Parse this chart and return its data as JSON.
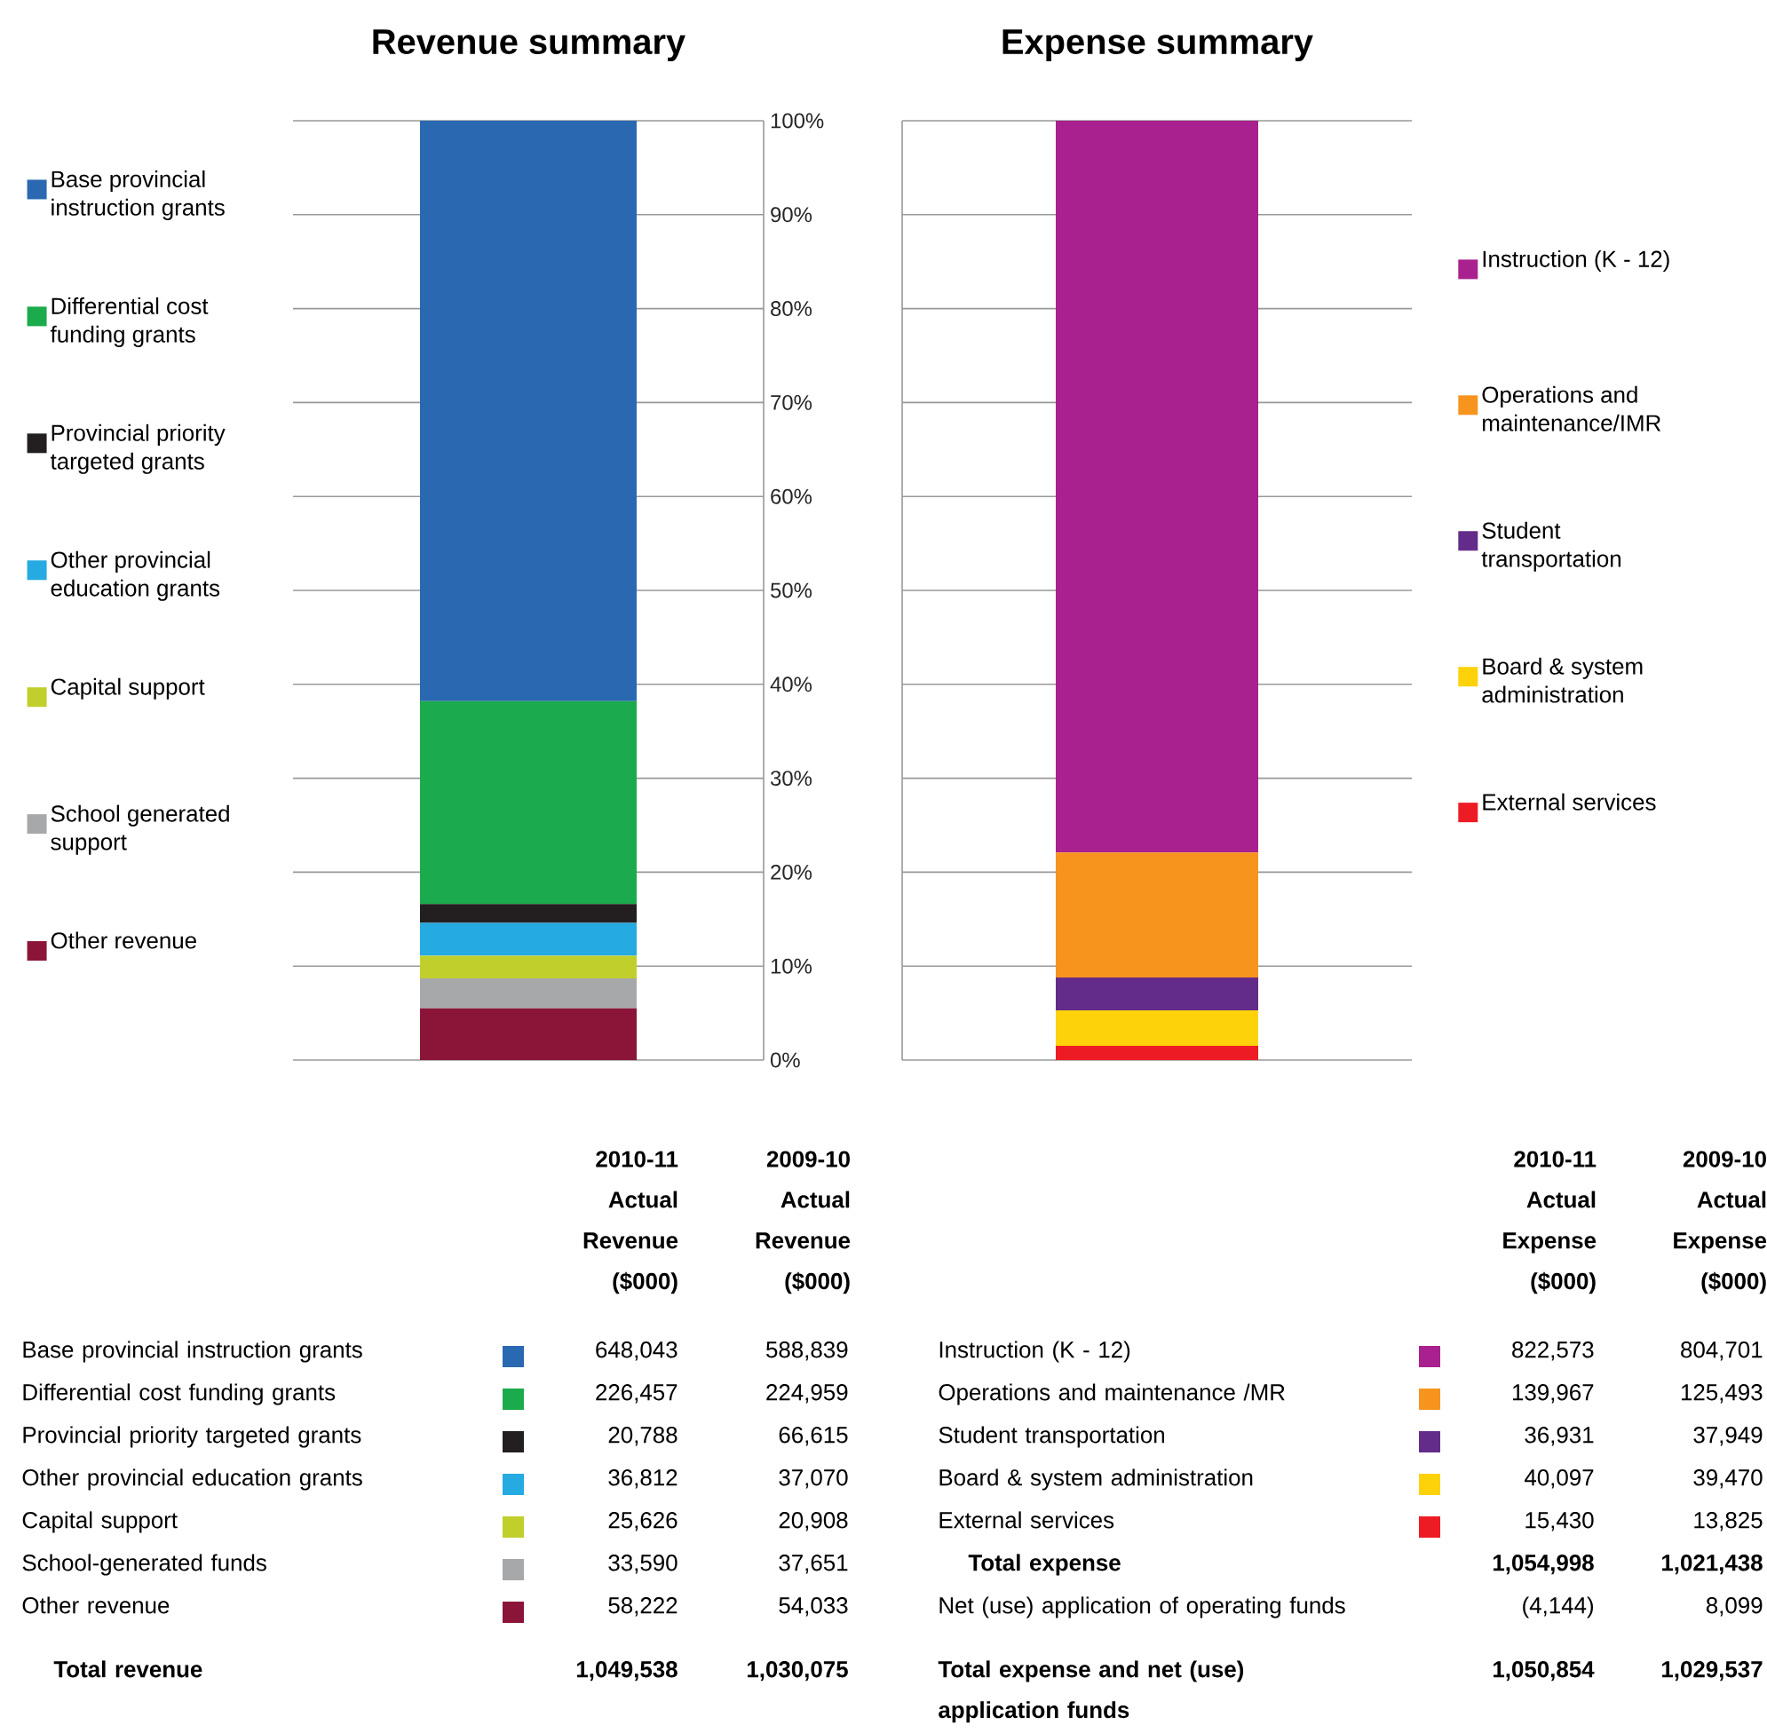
{
  "chart_data": [
    {
      "type": "bar",
      "title": "Revenue summary",
      "categories": [
        null
      ],
      "stacked": true,
      "grid": "y",
      "legend": "left",
      "tick_labels": "y",
      "ylim": [
        0,
        100
      ],
      "yticks": [
        {
          "value": 0,
          "label": "0%"
        },
        {
          "value": 10,
          "label": "10%"
        },
        {
          "value": 20,
          "label": "20%"
        },
        {
          "value": 30,
          "label": "30%"
        },
        {
          "value": 40,
          "label": "40%"
        },
        {
          "value": 50,
          "label": "50%"
        },
        {
          "value": 60,
          "label": "60%"
        },
        {
          "value": 70,
          "label": "70%"
        },
        {
          "value": 80,
          "label": "80%"
        },
        {
          "value": 90,
          "label": "90%"
        },
        {
          "value": 100,
          "label": "100%"
        }
      ],
      "series": [
        {
          "name": "Other revenue",
          "color": "#8b1538",
          "values": [
            5.5
          ]
        },
        {
          "name": "School generated support",
          "color": "#a7a8aa",
          "values": [
            3.2
          ]
        },
        {
          "name": "Capital support",
          "color": "#c1cf2d",
          "values": [
            2.4
          ]
        },
        {
          "name": "Other provincial education grants",
          "color": "#25aae1",
          "values": [
            3.5
          ]
        },
        {
          "name": "Provincial priority targeted grants",
          "color": "#231f20",
          "values": [
            2.0
          ]
        },
        {
          "name": "Differential cost funding grants",
          "color": "#1bab4c",
          "values": [
            21.6
          ]
        },
        {
          "name": "Base provincial instruction grants",
          "color": "#2a68b1",
          "values": [
            61.8
          ]
        }
      ],
      "annotations": [
        "2010-11 Actual Revenue ($000)",
        "2009-10 Actual Revenue ($000)",
        "Base provincial instruction grants",
        "648,043",
        "588,839",
        "Differential cost funding grants",
        "226,457",
        "224,959",
        "Provincial priority targeted grants",
        "20,788",
        "66,615",
        "Other provincial education grants",
        "36,812",
        "37,070",
        "Capital support",
        "25,626",
        "20,908",
        "School-generated funds",
        "33,590",
        "37,651",
        "Other revenue",
        "58,222",
        "54,033",
        "Total revenue",
        "1,049,538",
        "1,030,075"
      ]
    },
    {
      "type": "bar",
      "title": "Expense summary",
      "categories": [
        null
      ],
      "stacked": true,
      "grid": "y",
      "legend": "right",
      "tick_labels": false,
      "ylim": [
        0,
        100
      ],
      "yticks": [
        {
          "value": 0,
          "label": null
        },
        {
          "value": 10,
          "label": null
        },
        {
          "value": 20,
          "label": null
        },
        {
          "value": 30,
          "label": null
        },
        {
          "value": 40,
          "label": null
        },
        {
          "value": 50,
          "label": null
        },
        {
          "value": 60,
          "label": null
        },
        {
          "value": 70,
          "label": null
        },
        {
          "value": 80,
          "label": null
        },
        {
          "value": 90,
          "label": null
        },
        {
          "value": 100,
          "label": null
        }
      ],
      "series": [
        {
          "name": "External services",
          "color": "#ed1c24",
          "values": [
            1.5
          ]
        },
        {
          "name": "Board & system administration",
          "color": "#fdd20a",
          "values": [
            3.8
          ]
        },
        {
          "name": "Student transportation",
          "color": "#642c8a",
          "values": [
            3.5
          ]
        },
        {
          "name": "Operations and maintenance/IMR",
          "color": "#f7941e",
          "values": [
            13.3
          ]
        },
        {
          "name": "Instruction (K - 12)",
          "color": "#a9218e",
          "values": [
            77.9
          ]
        }
      ],
      "annotations": [
        "2010-11 Actual Expense ($000)",
        "2009-10 Actual Expense ($000)",
        "Instruction (K - 12)",
        "822,573",
        "804,701",
        "Operations and maintenance /MR",
        "139,967",
        "125,493",
        "Student transportation",
        "36,931",
        "37,949",
        "Board & system administration",
        "40,097",
        "39,470",
        "External services",
        "15,430",
        "13,825",
        "Total expense",
        "1,054,998",
        "1,021,438",
        "Net (use) application of operating funds",
        "(4,144)",
        "8,099",
        "Total expense and net (use) application funds",
        "1,050,854",
        "1,029,537"
      ]
    }
  ]
}
